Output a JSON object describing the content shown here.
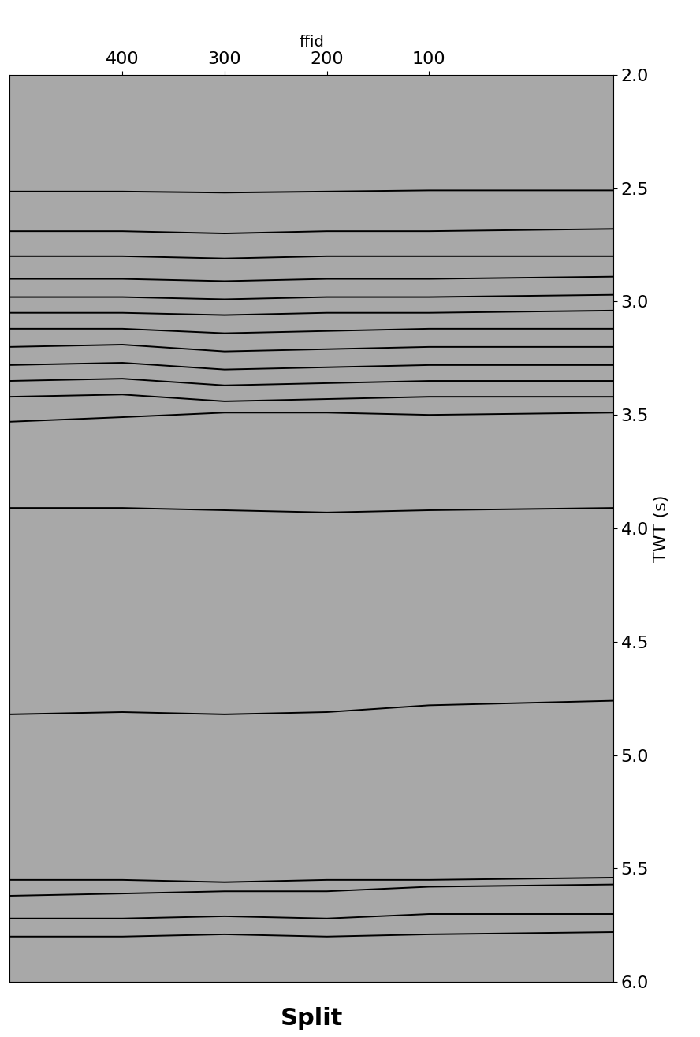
{
  "chart_data": {
    "type": "line",
    "title": "Split",
    "x_label": "ffid",
    "y_label": "TWT (s)",
    "x": [
      510,
      400,
      300,
      200,
      100,
      -80
    ],
    "series": [
      {
        "color": "#000000",
        "values": [
          2.515,
          2.515,
          2.52,
          2.515,
          2.51,
          2.51
        ]
      },
      {
        "color": "#000000",
        "values": [
          2.69,
          2.69,
          2.7,
          2.69,
          2.69,
          2.68
        ]
      },
      {
        "color": "#000000",
        "values": [
          2.8,
          2.8,
          2.81,
          2.8,
          2.8,
          2.8
        ]
      },
      {
        "color": "#000000",
        "values": [
          2.9,
          2.9,
          2.91,
          2.9,
          2.9,
          2.89
        ]
      },
      {
        "color": "#000000",
        "values": [
          2.98,
          2.98,
          2.99,
          2.98,
          2.98,
          2.97
        ]
      },
      {
        "color": "#000000",
        "values": [
          3.05,
          3.05,
          3.06,
          3.05,
          3.05,
          3.04
        ]
      },
      {
        "color": "#000000",
        "values": [
          3.12,
          3.12,
          3.14,
          3.13,
          3.12,
          3.12
        ]
      },
      {
        "color": "#000000",
        "values": [
          3.2,
          3.19,
          3.22,
          3.21,
          3.2,
          3.2
        ]
      },
      {
        "color": "#000000",
        "values": [
          3.28,
          3.27,
          3.3,
          3.29,
          3.28,
          3.28
        ]
      },
      {
        "color": "#000000",
        "values": [
          3.35,
          3.34,
          3.37,
          3.36,
          3.35,
          3.35
        ]
      },
      {
        "color": "#000000",
        "values": [
          3.42,
          3.41,
          3.44,
          3.43,
          3.42,
          3.42
        ]
      },
      {
        "color": "#000000",
        "values": [
          3.53,
          3.51,
          3.49,
          3.49,
          3.5,
          3.49
        ]
      },
      {
        "color": "#000000",
        "values": [
          3.91,
          3.91,
          3.92,
          3.93,
          3.92,
          3.91
        ]
      },
      {
        "color": "#000000",
        "values": [
          4.82,
          4.81,
          4.82,
          4.81,
          4.78,
          4.76
        ]
      },
      {
        "color": "#000000",
        "values": [
          5.55,
          5.55,
          5.56,
          5.55,
          5.55,
          5.54
        ]
      },
      {
        "color": "#000000",
        "values": [
          5.62,
          5.61,
          5.6,
          5.6,
          5.58,
          5.57
        ]
      },
      {
        "color": "#000000",
        "values": [
          5.72,
          5.72,
          5.71,
          5.72,
          5.7,
          5.7
        ]
      },
      {
        "color": "#000000",
        "values": [
          5.8,
          5.8,
          5.79,
          5.8,
          5.79,
          5.78
        ]
      }
    ],
    "xlim": [
      510,
      -80
    ],
    "xticks": [
      400,
      300,
      200,
      100
    ],
    "ylim": [
      6.0,
      2.0
    ],
    "yticks": [
      2.0,
      2.5,
      3.0,
      3.5,
      4.0,
      4.5,
      5.0,
      5.5,
      6.0
    ],
    "grid": false
  }
}
